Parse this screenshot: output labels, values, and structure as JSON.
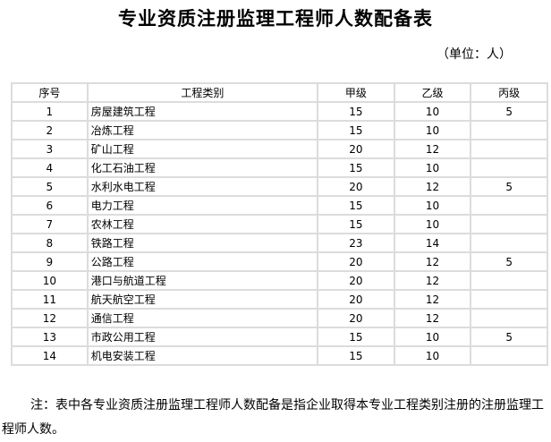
{
  "title": "专业资质注册监理工程师人数配备表",
  "unit": "（单位：人）",
  "table": {
    "headers": [
      "序号",
      "工程类别",
      "甲级",
      "乙级",
      "丙级"
    ],
    "rows": [
      [
        "1",
        "房屋建筑工程",
        "15",
        "10",
        "5"
      ],
      [
        "2",
        "冶炼工程",
        "15",
        "10",
        ""
      ],
      [
        "3",
        "矿山工程",
        "20",
        "12",
        ""
      ],
      [
        "4",
        "化工石油工程",
        "15",
        "10",
        ""
      ],
      [
        "5",
        "水利水电工程",
        "20",
        "12",
        "5"
      ],
      [
        "6",
        "电力工程",
        "15",
        "10",
        ""
      ],
      [
        "7",
        "农林工程",
        "15",
        "10",
        ""
      ],
      [
        "8",
        "铁路工程",
        "23",
        "14",
        ""
      ],
      [
        "9",
        "公路工程",
        "20",
        "12",
        "5"
      ],
      [
        "10",
        "港口与航道工程",
        "20",
        "12",
        ""
      ],
      [
        "11",
        "航天航空工程",
        "20",
        "12",
        ""
      ],
      [
        "12",
        "通信工程",
        "20",
        "12",
        ""
      ],
      [
        "13",
        "市政公用工程",
        "15",
        "10",
        "5"
      ],
      [
        "14",
        "机电安装工程",
        "15",
        "10",
        ""
      ]
    ]
  },
  "note": "注：表中各专业资质注册监理工程师人数配备是指企业取得本专业工程类别注册的注册监理工程师人数。"
}
